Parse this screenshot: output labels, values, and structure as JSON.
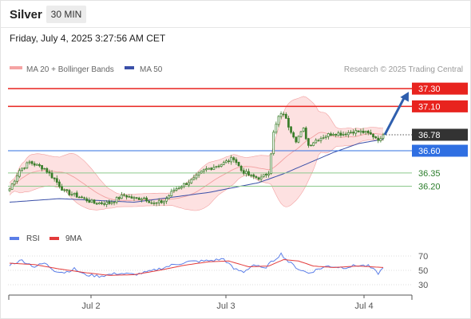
{
  "header": {
    "instrument": "Silver",
    "timeframe": "30 MIN"
  },
  "date_label": "Friday, July 4, 2025 3:27:56 AM CET",
  "legend": {
    "bb": "MA 20 + Bollinger Bands",
    "ma50": "MA 50",
    "credit": "Research © 2025 Trading Central",
    "rsi": "RSI",
    "ma9": "9MA"
  },
  "colors": {
    "bb_band": "#fde1e1",
    "bb_line": "#f2a0a0",
    "ma50": "#3a4fa8",
    "candle": "#3a7d2a",
    "resistance": "#e8231e",
    "pivot": "#2f6fe2",
    "support": "#8cc98c",
    "arrow": "#2f5fae",
    "rsi": "#5b7ee8",
    "rsi_ma": "#e33b3b"
  },
  "chart_data": [
    {
      "type": "candlestick",
      "title": "Silver 30 MIN",
      "x_ticks": [
        "Jul 2",
        "Jul 3",
        "Jul 4"
      ],
      "ylim": [
        35.8,
        37.4
      ],
      "series": [
        {
          "name": "Silver",
          "kind": "ohlc",
          "close_path": [
            [
              0,
              36.17
            ],
            [
              4,
              36.38
            ],
            [
              8,
              36.47
            ],
            [
              14,
              36.4
            ],
            [
              18,
              36.28
            ],
            [
              22,
              36.14
            ],
            [
              28,
              36.08
            ],
            [
              34,
              36.01
            ],
            [
              40,
              36.01
            ],
            [
              46,
              36.1
            ],
            [
              50,
              36.06
            ],
            [
              54,
              36.07
            ],
            [
              58,
              36.0
            ],
            [
              62,
              36.03
            ],
            [
              66,
              36.16
            ],
            [
              70,
              36.22
            ],
            [
              74,
              36.28
            ],
            [
              78,
              36.38
            ],
            [
              82,
              36.42
            ],
            [
              86,
              36.46
            ],
            [
              88,
              36.49
            ],
            [
              90,
              36.52
            ],
            [
              93,
              36.38
            ],
            [
              97,
              36.31
            ],
            [
              101,
              36.29
            ],
            [
              104,
              36.36
            ],
            [
              106,
              36.8
            ],
            [
              108,
              36.98
            ],
            [
              110,
              37.02
            ],
            [
              112,
              36.88
            ],
            [
              115,
              36.72
            ],
            [
              118,
              36.84
            ],
            [
              120,
              36.66
            ],
            [
              123,
              36.72
            ],
            [
              126,
              36.76
            ],
            [
              130,
              36.8
            ],
            [
              134,
              36.79
            ],
            [
              138,
              36.82
            ],
            [
              142,
              36.81
            ],
            [
              145,
              36.78
            ],
            [
              147,
              36.75
            ],
            [
              149,
              36.72
            ],
            [
              150,
              36.78
            ]
          ],
          "candle_count": 151
        },
        {
          "name": "MA 20 + Bollinger Bands",
          "kind": "band"
        },
        {
          "name": "MA 50",
          "kind": "line",
          "points": [
            [
              0,
              36.02
            ],
            [
              20,
              36.06
            ],
            [
              50,
              36.02
            ],
            [
              80,
              36.13
            ],
            [
              100,
              36.24
            ],
            [
              110,
              36.34
            ],
            [
              120,
              36.46
            ],
            [
              130,
              36.58
            ],
            [
              140,
              36.68
            ],
            [
              150,
              36.73
            ]
          ]
        }
      ],
      "levels": [
        {
          "value": 37.3,
          "label": "37.30",
          "style": "resistance"
        },
        {
          "value": 37.1,
          "label": "37.10",
          "style": "resistance"
        },
        {
          "value": 36.78,
          "label": "36.78",
          "style": "current"
        },
        {
          "value": 36.6,
          "label": "36.60",
          "style": "pivot"
        },
        {
          "value": 36.35,
          "label": "36.35",
          "style": "support"
        },
        {
          "value": 36.2,
          "label": "36.20",
          "style": "support"
        }
      ],
      "arrow": {
        "from_value": 36.78,
        "to_value": 37.3
      }
    },
    {
      "type": "line",
      "ylim": [
        20,
        80
      ],
      "y_ticks": [
        "70",
        "50",
        "30"
      ],
      "series": [
        {
          "name": "RSI",
          "points": [
            [
              0,
              58
            ],
            [
              5,
              64
            ],
            [
              10,
              55
            ],
            [
              14,
              60
            ],
            [
              18,
              50
            ],
            [
              22,
              47
            ],
            [
              26,
              52
            ],
            [
              30,
              44
            ],
            [
              36,
              42
            ],
            [
              44,
              46
            ],
            [
              50,
              44
            ],
            [
              56,
              48
            ],
            [
              62,
              54
            ],
            [
              66,
              58
            ],
            [
              72,
              62
            ],
            [
              78,
              63
            ],
            [
              82,
              64
            ],
            [
              86,
              66
            ],
            [
              90,
              52
            ],
            [
              94,
              48
            ],
            [
              98,
              58
            ],
            [
              102,
              52
            ],
            [
              106,
              64
            ],
            [
              109,
              73
            ],
            [
              112,
              62
            ],
            [
              116,
              52
            ],
            [
              120,
              46
            ],
            [
              124,
              52
            ],
            [
              128,
              56
            ],
            [
              134,
              54
            ],
            [
              140,
              57
            ],
            [
              144,
              56
            ],
            [
              148,
              46
            ],
            [
              150,
              53
            ]
          ]
        },
        {
          "name": "9MA",
          "points": [
            [
              0,
              60
            ],
            [
              10,
              58
            ],
            [
              20,
              52
            ],
            [
              30,
              47
            ],
            [
              40,
              43
            ],
            [
              50,
              44
            ],
            [
              60,
              50
            ],
            [
              70,
              57
            ],
            [
              80,
              62
            ],
            [
              88,
              63
            ],
            [
              96,
              55
            ],
            [
              104,
              56
            ],
            [
              110,
              65
            ],
            [
              116,
              63
            ],
            [
              122,
              56
            ],
            [
              130,
              54
            ],
            [
              140,
              56
            ],
            [
              150,
              54
            ]
          ]
        }
      ]
    }
  ]
}
